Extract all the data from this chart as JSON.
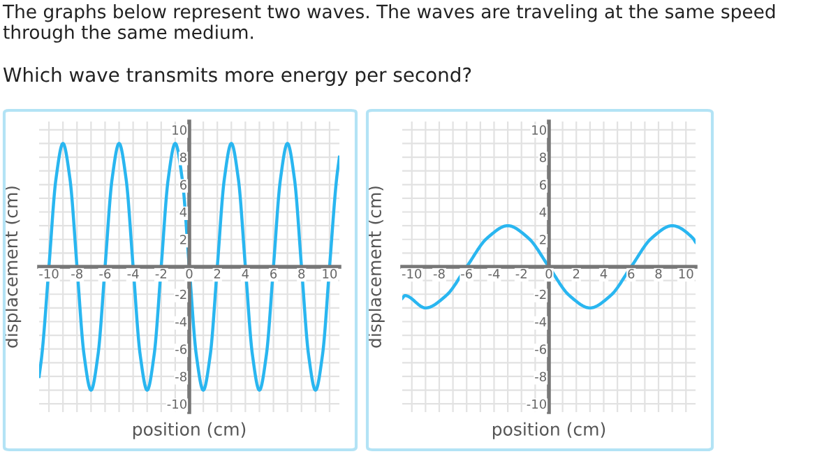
{
  "chart_data": [
    {
      "type": "line",
      "title": "The graphs below represent two waves. The waves are traveling at the same speed through the same medium.",
      "subtitle": "Which wave transmits more energy per second?",
      "xlabel": "position (cm)",
      "ylabel": "displacement (cm)",
      "xlim": [
        -10.7,
        10.7
      ],
      "ylim": [
        -10.6,
        10.6
      ],
      "xticks": [
        -10,
        {
          "value": -9,
          "label": null
        },
        -8,
        {
          "value": -7,
          "label": null
        },
        -6,
        {
          "value": -5,
          "label": null
        },
        -4,
        {
          "value": -3,
          "label": null
        },
        -2,
        {
          "value": -1,
          "label": null
        },
        0,
        {
          "value": 1,
          "label": null
        },
        2,
        {
          "value": 3,
          "label": null
        },
        4,
        {
          "value": 5,
          "label": null
        },
        6,
        {
          "value": 7,
          "label": null
        },
        8,
        {
          "value": 9,
          "label": null
        },
        10
      ],
      "yticks": [
        -10,
        {
          "value": -9,
          "label": null
        },
        -8,
        {
          "value": -7,
          "label": null
        },
        -6,
        {
          "value": -5,
          "label": null
        },
        -4,
        {
          "value": -3,
          "label": null
        },
        -2,
        {
          "value": -1,
          "label": null
        },
        {
          "value": 0,
          "label": null
        },
        {
          "value": 1,
          "label": null
        },
        2,
        {
          "value": 3,
          "label": null
        },
        4,
        {
          "value": 5,
          "label": null
        },
        6,
        {
          "value": 7,
          "label": null
        },
        8,
        {
          "value": 9,
          "label": null
        },
        10
      ],
      "grid": true,
      "marker": "none",
      "line_style": "solid",
      "series": [
        {
          "color": "#29b6f0",
          "x": [
            -10.7,
            -10.5,
            -10,
            -9.5,
            -9,
            -8.5,
            -8,
            -7.5,
            -7,
            -6.5,
            -6,
            -5.5,
            -5,
            -4.5,
            -4,
            -3.5,
            -3,
            -2.5,
            -2,
            -1.5,
            -1,
            -0.5,
            0,
            0.5,
            1,
            1.5,
            2,
            2.5,
            3,
            3.5,
            4,
            4.5,
            5,
            5.5,
            6,
            6.5,
            7,
            7.5,
            8,
            8.5,
            9,
            9.5,
            10,
            10.5,
            10.7
          ],
          "values": [
            -8,
            -6.4,
            0,
            6.4,
            9,
            6.4,
            0,
            -6.4,
            -9,
            -6.4,
            0,
            6.4,
            9,
            6.4,
            0,
            -6.4,
            -9,
            -6.4,
            0,
            6.4,
            9,
            6.4,
            0,
            -6.4,
            -9,
            -6.4,
            0,
            6.4,
            9,
            6.4,
            0,
            -6.4,
            -9,
            -6.4,
            0,
            6.4,
            9,
            6.4,
            0,
            -6.4,
            -9,
            -6.4,
            0,
            6.4,
            8
          ]
        }
      ]
    },
    {
      "type": "line",
      "xlabel": "position (cm)",
      "ylabel": "displacement (cm)",
      "xlim": [
        -10.7,
        10.7
      ],
      "ylim": [
        -10.6,
        10.6
      ],
      "xticks": [
        -10,
        {
          "value": -9,
          "label": null
        },
        -8,
        {
          "value": -7,
          "label": null
        },
        -6,
        {
          "value": -5,
          "label": null
        },
        -4,
        {
          "value": -3,
          "label": null
        },
        -2,
        {
          "value": -1,
          "label": null
        },
        0,
        {
          "value": 1,
          "label": null
        },
        2,
        {
          "value": 3,
          "label": null
        },
        4,
        {
          "value": 5,
          "label": null
        },
        6,
        {
          "value": 7,
          "label": null
        },
        8,
        {
          "value": 9,
          "label": null
        },
        10
      ],
      "yticks": [
        -10,
        {
          "value": -9,
          "label": null
        },
        -8,
        {
          "value": -7,
          "label": null
        },
        -6,
        {
          "value": -5,
          "label": null
        },
        -4,
        {
          "value": -3,
          "label": null
        },
        -2,
        {
          "value": -1,
          "label": null
        },
        {
          "value": 0,
          "label": null
        },
        {
          "value": 1,
          "label": null
        },
        2,
        {
          "value": 3,
          "label": null
        },
        4,
        {
          "value": 5,
          "label": null
        },
        6,
        {
          "value": 7,
          "label": null
        },
        8,
        {
          "value": 9,
          "label": null
        },
        10
      ],
      "grid": true,
      "marker": "none",
      "line_style": "solid",
      "series": [
        {
          "color": "#29b6f0",
          "x": [
            -10.7,
            -10.5,
            -9,
            -7.5,
            -6,
            -4.5,
            -3,
            -1.5,
            0,
            1.5,
            3,
            4.5,
            6,
            7.5,
            9,
            10.5,
            10.7
          ],
          "values": [
            -2.3,
            -2.1,
            -3,
            -2.1,
            0,
            2.1,
            3,
            2.1,
            0,
            -2.1,
            -3,
            -2.1,
            0,
            2.1,
            3,
            2.1,
            1.8
          ]
        }
      ]
    }
  ]
}
